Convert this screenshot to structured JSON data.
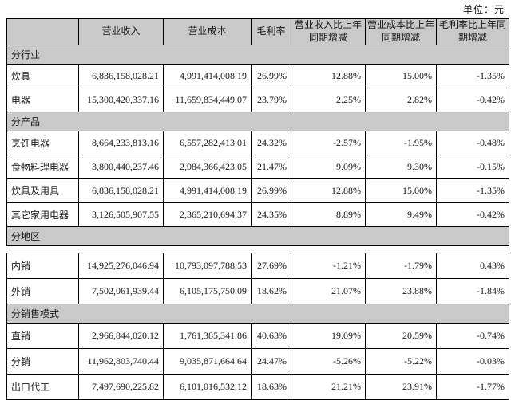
{
  "unit_label": "单位：元",
  "columns": [
    "",
    "营业收入",
    "营业成本",
    "毛利率",
    "营业收入比上年同期增减",
    "营业成本比上年同期增减",
    "毛利率比上年同期增减"
  ],
  "tables": [
    {
      "groups": [
        {
          "section": "分行业",
          "rows": [
            [
              "炊具",
              "6,836,158,028.21",
              "4,991,414,008.19",
              "26.99%",
              "12.88%",
              "15.00%",
              "-1.35%"
            ],
            [
              "电器",
              "15,300,420,337.16",
              "11,659,834,449.07",
              "23.79%",
              "2.25%",
              "2.82%",
              "-0.42%"
            ]
          ]
        },
        {
          "section": "分产品",
          "rows": [
            [
              "烹饪电器",
              "8,664,233,813.16",
              "6,557,282,413.01",
              "24.32%",
              "-2.57%",
              "-1.95%",
              "-0.48%"
            ],
            [
              "食物料理电器",
              "3,800,440,237.46",
              "2,984,366,423.05",
              "21.47%",
              "9.09%",
              "9.30%",
              "-0.15%"
            ],
            [
              "炊具及用具",
              "6,836,158,028.21",
              "4,991,414,008.19",
              "26.99%",
              "12.88%",
              "15.00%",
              "-1.35%"
            ],
            [
              "其它家用电器",
              "3,126,505,907.55",
              "2,365,210,694.37",
              "24.35%",
              "8.89%",
              "9.49%",
              "-0.42%"
            ]
          ]
        },
        {
          "section": "分地区",
          "rows": []
        }
      ]
    },
    {
      "groups": [
        {
          "section": null,
          "rows": [
            [
              "内销",
              "14,925,276,046.94",
              "10,793,097,788.53",
              "27.69%",
              "-1.21%",
              "-1.79%",
              "0.43%"
            ],
            [
              "外销",
              "7,502,061,939.44",
              "6,105,175,750.09",
              "18.62%",
              "21.07%",
              "23.88%",
              "-1.84%"
            ]
          ]
        },
        {
          "section": "分销售模式",
          "rows": [
            [
              "直销",
              "2,966,844,020.12",
              "1,761,385,341.86",
              "40.63%",
              "19.09%",
              "20.59%",
              "-0.74%"
            ],
            [
              "分销",
              "11,962,803,740.44",
              "9,035,871,664.64",
              "24.47%",
              "-5.26%",
              "-5.22%",
              "-0.03%"
            ],
            [
              "出口代工",
              "7,497,690,225.82",
              "6,101,016,532.12",
              "18.63%",
              "21.21%",
              "23.91%",
              "-1.77%"
            ]
          ]
        }
      ]
    }
  ],
  "colors": {
    "header_bg": "#c9c9c9",
    "section_bg": "#c9c9c9",
    "border": "#000000"
  }
}
